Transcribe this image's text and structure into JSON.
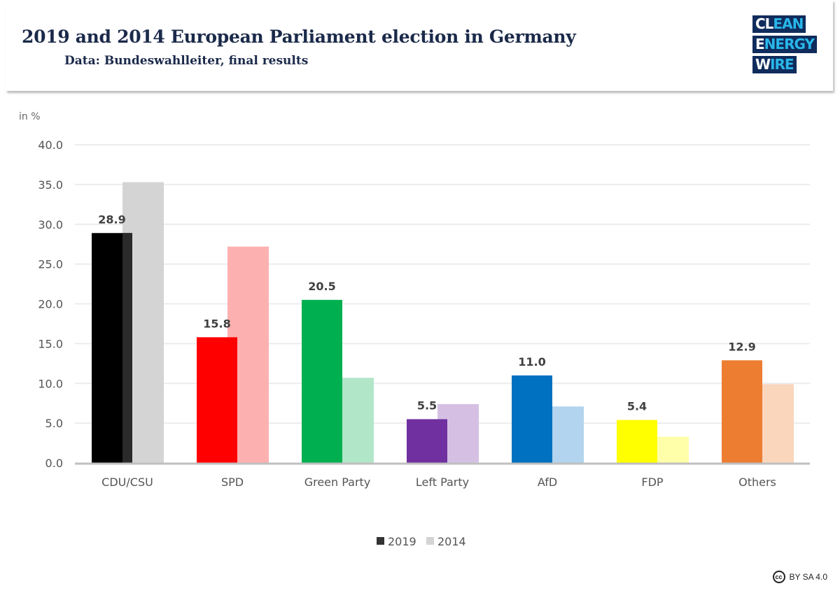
{
  "header": {
    "title": "2019 and 2014 European Parliament election in Germany",
    "subtitle": "Data: Bundeswahlleiter, final results"
  },
  "logo": {
    "lines": [
      [
        "CL",
        "EAN"
      ],
      [
        "E",
        "NERGY"
      ],
      [
        "W",
        "IRE"
      ]
    ]
  },
  "license": {
    "icon": "cc",
    "text": "BY SA 4.0"
  },
  "chart_data": {
    "type": "bar",
    "ylabel": "in %",
    "ylim": [
      0,
      40
    ],
    "yticks": [
      "0.0",
      "5.0",
      "10.0",
      "15.0",
      "20.0",
      "25.0",
      "30.0",
      "35.0",
      "40.0"
    ],
    "grid": true,
    "legend_position": "bottom",
    "categories": [
      "CDU/CSU",
      "SPD",
      "Green Party",
      "Left Party",
      "AfD",
      "FDP",
      "Others"
    ],
    "series": [
      {
        "name": "2019",
        "values": [
          28.9,
          15.8,
          20.5,
          5.5,
          11.0,
          5.4,
          12.9
        ],
        "labels": [
          "28.9",
          "15.8",
          "20.5",
          "5.5",
          "11.0",
          "5.4",
          "12.9"
        ],
        "colors": [
          "#000000",
          "#ff0000",
          "#00b050",
          "#7030a0",
          "#0070c0",
          "#ffff00",
          "#ed7d31"
        ],
        "legend_color": "#333333"
      },
      {
        "name": "2014",
        "values": [
          35.3,
          27.2,
          10.7,
          7.4,
          7.1,
          3.3,
          9.9
        ],
        "colors": [
          "#d4d4d4",
          "#fdb0b0",
          "#b2e6c8",
          "#d5c0e3",
          "#b2d4ee",
          "#ffffaa",
          "#fad6bd"
        ],
        "legend_color": "#d4d4d4"
      }
    ]
  }
}
